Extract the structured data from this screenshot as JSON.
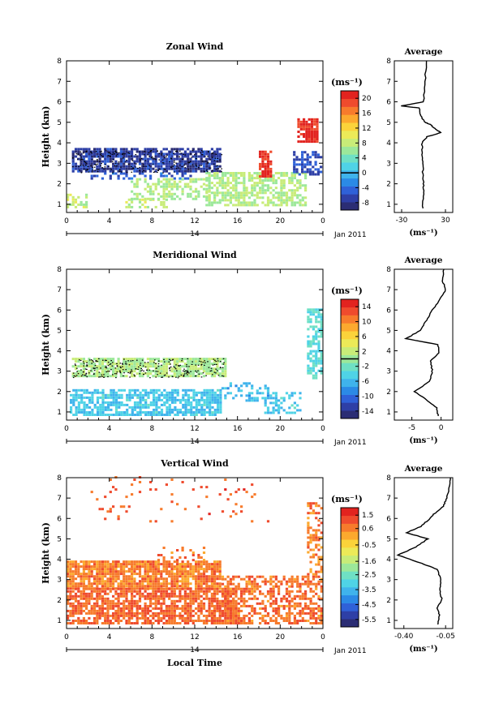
{
  "chart_data": [
    {
      "type": "heatmap",
      "title": "Zonal Wind",
      "xlabel": "",
      "ylabel": "Height (km)",
      "x_ticks": [
        "0",
        "4",
        "8",
        "12",
        "16",
        "20",
        "0"
      ],
      "x_range": [
        0,
        24
      ],
      "y_ticks": [
        "1",
        "2",
        "3",
        "4",
        "5",
        "6",
        "7",
        "8"
      ],
      "y_range": [
        0.6,
        8
      ],
      "date_ticks": [
        "14"
      ],
      "date_label": "Jan 2011",
      "colorbar": {
        "unit": "(ms⁻¹)",
        "ticks": [
          "20",
          "16",
          "12",
          "8",
          "4",
          "0",
          "-4",
          "-8"
        ],
        "range": [
          -10,
          22
        ],
        "zero_line": 0
      },
      "avg_panel": {
        "title": "Average",
        "xlabel": "(ms⁻¹)",
        "x_ticks": [
          "-30",
          "30"
        ],
        "xlim": [
          -40,
          40
        ],
        "height": [
          0.8,
          1.5,
          2.0,
          2.5,
          3.0,
          3.5,
          4.0,
          4.3,
          4.5,
          4.7,
          4.9,
          5.0,
          5.2,
          5.4,
          5.7,
          5.8,
          6.0,
          7.0,
          8.0
        ],
        "value": [
          -1,
          0,
          0,
          -1,
          -1,
          -2,
          -2,
          5,
          24,
          15,
          9,
          2,
          -2,
          -5,
          -6,
          -30,
          0,
          2,
          4
        ]
      },
      "regions": [
        {
          "t0": 0.5,
          "t1": 14.5,
          "h0": 2.55,
          "h1": 3.65,
          "v": -7,
          "d": 0.8
        },
        {
          "t0": 2.0,
          "t1": 12.0,
          "h0": 2.2,
          "h1": 2.55,
          "v": -5,
          "d": 0.3
        },
        {
          "t0": 0.0,
          "t1": 2.0,
          "h0": 0.8,
          "h1": 1.5,
          "v": 8,
          "d": 0.5
        },
        {
          "t0": 5.5,
          "t1": 9.5,
          "h0": 0.8,
          "h1": 1.2,
          "v": 8,
          "d": 0.4
        },
        {
          "t0": 6.0,
          "t1": 13.5,
          "h0": 1.2,
          "h1": 2.2,
          "v": 7,
          "d": 0.45
        },
        {
          "t0": 13.0,
          "t1": 22.5,
          "h0": 0.9,
          "h1": 2.5,
          "v": 7,
          "d": 0.65
        },
        {
          "t0": 18.0,
          "t1": 19.2,
          "h0": 2.3,
          "h1": 3.6,
          "v": 20,
          "d": 0.85
        },
        {
          "t0": 21.6,
          "t1": 23.4,
          "h0": 4.0,
          "h1": 5.1,
          "v": 20,
          "d": 0.85
        },
        {
          "t0": 21.2,
          "t1": 23.8,
          "h0": 2.4,
          "h1": 3.6,
          "v": -6,
          "d": 0.55
        }
      ]
    },
    {
      "type": "heatmap",
      "title": "Meridional Wind",
      "xlabel": "",
      "ylabel": "Height (km)",
      "x_ticks": [
        "0",
        "4",
        "8",
        "12",
        "16",
        "20",
        "0"
      ],
      "x_range": [
        0,
        24
      ],
      "y_ticks": [
        "1",
        "2",
        "3",
        "4",
        "5",
        "6",
        "7",
        "8"
      ],
      "y_range": [
        0.6,
        8
      ],
      "date_ticks": [
        "14"
      ],
      "date_label": "Jan 2011",
      "colorbar": {
        "unit": "(ms⁻¹)",
        "ticks": [
          "14",
          "10",
          "6",
          "2",
          "-2",
          "-6",
          "-10",
          "-14"
        ],
        "range": [
          -16,
          16
        ],
        "zero_line": 0
      },
      "avg_panel": {
        "title": "Average",
        "xlabel": "(ms⁻¹)",
        "x_ticks": [
          "-5",
          "0"
        ],
        "xlim": [
          -8,
          2
        ],
        "height": [
          0.8,
          1.2,
          1.6,
          2.0,
          2.5,
          3.0,
          3.5,
          3.9,
          4.3,
          4.6,
          5.0,
          5.5,
          6.0,
          6.5,
          7.0,
          7.5,
          8.0
        ],
        "value": [
          -0.5,
          -0.7,
          -2.5,
          -4.5,
          -2.0,
          -1.5,
          -1.8,
          -0.3,
          -0.5,
          -6.0,
          -3.5,
          -2.5,
          -1.5,
          -0.2,
          0.8,
          0.2,
          0.5
        ]
      },
      "regions": [
        {
          "t0": 0.5,
          "t1": 14.8,
          "h0": 2.7,
          "h1": 3.65,
          "v": 1,
          "d": 0.8
        },
        {
          "t0": 0.3,
          "t1": 14.5,
          "h0": 0.8,
          "h1": 2.1,
          "v": -5,
          "d": 0.7
        },
        {
          "t0": 14.5,
          "t1": 19.0,
          "h0": 1.5,
          "h1": 2.4,
          "v": -6,
          "d": 0.35
        },
        {
          "t0": 22.5,
          "t1": 23.9,
          "h0": 2.6,
          "h1": 6.0,
          "v": -3,
          "d": 0.65
        },
        {
          "t0": 18.5,
          "t1": 22.0,
          "h0": 0.9,
          "h1": 1.9,
          "v": -5,
          "d": 0.45
        }
      ]
    },
    {
      "type": "heatmap",
      "title": "Vertical Wind",
      "xlabel": "Local Time",
      "ylabel": "Height (km)",
      "x_ticks": [
        "0",
        "4",
        "8",
        "12",
        "16",
        "20",
        "0"
      ],
      "x_range": [
        0,
        24
      ],
      "y_ticks": [
        "1",
        "2",
        "3",
        "4",
        "5",
        "6",
        "7",
        "8"
      ],
      "y_range": [
        0.6,
        8
      ],
      "date_ticks": [
        "14"
      ],
      "date_label": "Jan 2011",
      "colorbar": {
        "unit": "(ms⁻¹)",
        "ticks": [
          "1.5",
          "0.6",
          "-0.5",
          "-1.6",
          "-2.5",
          "-3.5",
          "-4.5",
          "-5.5"
        ],
        "range": [
          -6.0,
          2.0
        ],
        "zero_line": null
      },
      "avg_panel": {
        "title": "Average",
        "xlabel": "(ms⁻¹)",
        "x_ticks": [
          "-0.40",
          "-0.05"
        ],
        "xlim": [
          -0.48,
          0.01
        ],
        "height": [
          0.8,
          1.2,
          1.6,
          2.0,
          2.5,
          3.0,
          3.5,
          3.8,
          4.2,
          4.6,
          5.0,
          5.3,
          5.6,
          5.9,
          6.2,
          6.6,
          7.0,
          7.5,
          8.0
        ],
        "value": [
          -0.12,
          -0.1,
          -0.12,
          -0.08,
          -0.1,
          -0.09,
          -0.12,
          -0.25,
          -0.45,
          -0.3,
          -0.2,
          -0.38,
          -0.26,
          -0.2,
          -0.15,
          -0.07,
          -0.04,
          -0.02,
          -0.01
        ]
      },
      "regions": [
        {
          "t0": 0.0,
          "t1": 14.5,
          "h0": 2.5,
          "h1": 3.9,
          "v": 0.6,
          "d": 0.85
        },
        {
          "t0": 0.0,
          "t1": 16.0,
          "h0": 0.8,
          "h1": 2.5,
          "v": 0.9,
          "d": 0.75
        },
        {
          "t0": 14.5,
          "t1": 24.0,
          "h0": 0.8,
          "h1": 3.2,
          "v": 0.8,
          "d": 0.55
        },
        {
          "t0": 1.5,
          "t1": 19.0,
          "h0": 5.8,
          "h1": 8.0,
          "v": 1.0,
          "d": 0.05
        },
        {
          "t0": 22.5,
          "t1": 24.0,
          "h0": 3.2,
          "h1": 6.7,
          "v": 0.6,
          "d": 0.45
        },
        {
          "t0": 8.0,
          "t1": 13.0,
          "h0": 3.9,
          "h1": 4.6,
          "v": 0.7,
          "d": 0.25
        }
      ]
    }
  ]
}
